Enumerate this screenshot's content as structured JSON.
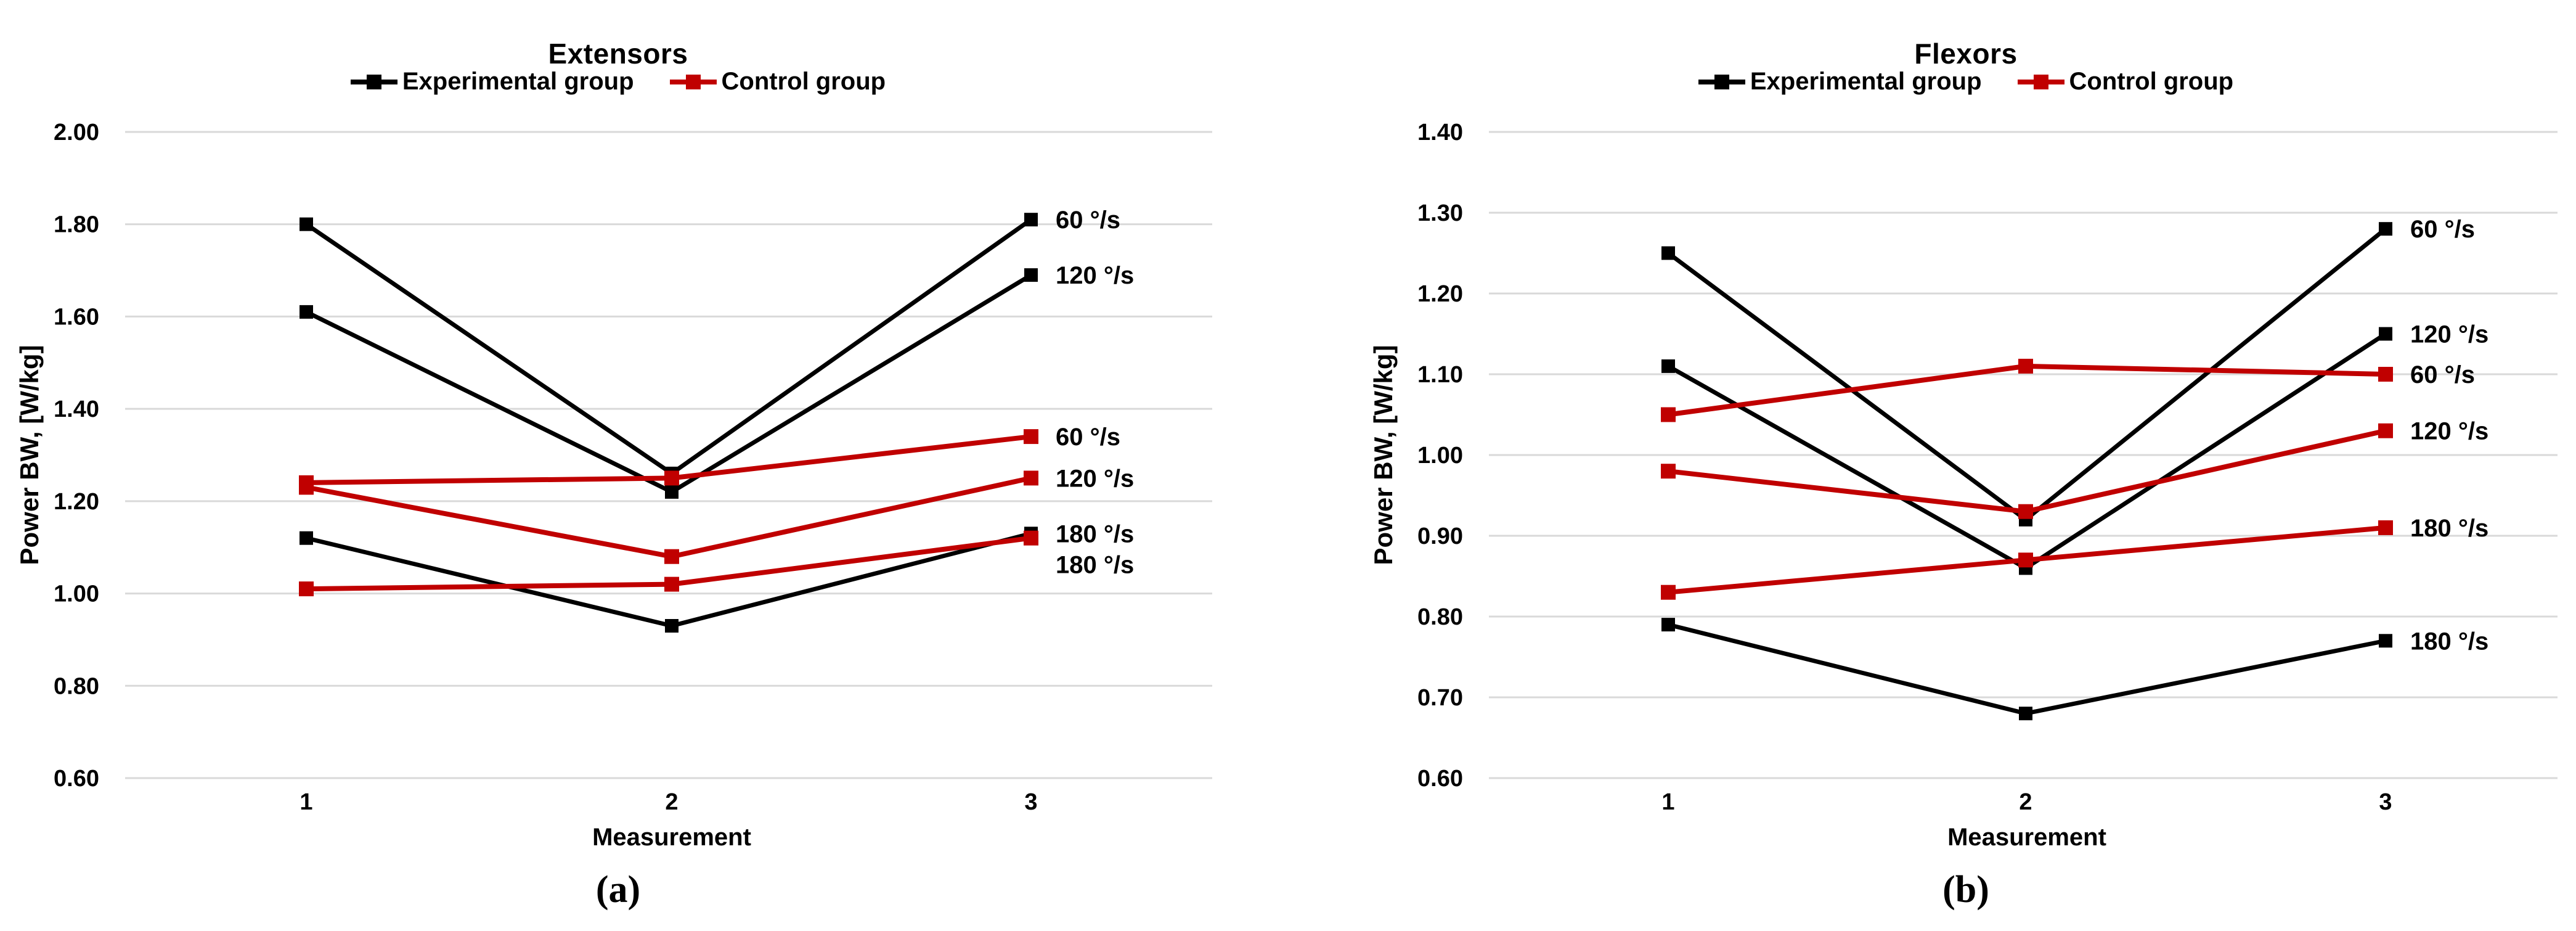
{
  "colors": {
    "experimental": "#000000",
    "control": "#C00000",
    "gridline": "#D9D9D9",
    "background": "#FFFFFF",
    "label_text": "#000000"
  },
  "legend": {
    "items": [
      {
        "label": "Experimental group",
        "color_key": "experimental"
      },
      {
        "label": "Control group",
        "color_key": "control"
      }
    ]
  },
  "captions": {
    "a": "(a)",
    "b": "(b)"
  },
  "chart_data": [
    {
      "id": "extensors",
      "type": "line",
      "title": "Extensors",
      "xlabel": "Measurement",
      "ylabel": "Power BW, [W/kg]",
      "categories": [
        "1",
        "2",
        "3"
      ],
      "ylim": [
        0.6,
        2.0
      ],
      "ytick_step": 0.2,
      "ytick_labels": [
        "2.00",
        "1.80",
        "1.60",
        "1.40",
        "1.20",
        "1.00",
        "0.80",
        "0.60"
      ],
      "grid": true,
      "legend_position": "top",
      "series": [
        {
          "name": "Experimental group",
          "speed_label": "60 °/s",
          "color_key": "experimental",
          "values": [
            1.8,
            1.26,
            1.81
          ]
        },
        {
          "name": "Experimental group",
          "speed_label": "120 °/s",
          "color_key": "experimental",
          "values": [
            1.61,
            1.22,
            1.69
          ]
        },
        {
          "name": "Experimental group",
          "speed_label": "180 °/s",
          "color_key": "experimental",
          "values": [
            1.12,
            0.93,
            1.13
          ]
        },
        {
          "name": "Control group",
          "speed_label": "60 °/s",
          "color_key": "control",
          "values": [
            1.24,
            1.25,
            1.34
          ]
        },
        {
          "name": "Control group",
          "speed_label": "120 °/s",
          "color_key": "control",
          "values": [
            1.23,
            1.08,
            1.25
          ]
        },
        {
          "name": "Control group",
          "speed_label": "180 °/s",
          "color_key": "control",
          "values": [
            1.01,
            1.02,
            1.12
          ]
        }
      ]
    },
    {
      "id": "flexors",
      "type": "line",
      "title": "Flexors",
      "xlabel": "Measurement",
      "ylabel": "Power BW, [W/kg]",
      "categories": [
        "1",
        "2",
        "3"
      ],
      "ylim": [
        0.6,
        1.4
      ],
      "ytick_step": 0.1,
      "ytick_labels": [
        "1.40",
        "1.30",
        "1.20",
        "1.10",
        "1.00",
        "0.90",
        "0.80",
        "0.70",
        "0.60"
      ],
      "grid": true,
      "legend_position": "top",
      "series": [
        {
          "name": "Experimental group",
          "speed_label": "60 °/s",
          "color_key": "experimental",
          "values": [
            1.25,
            0.92,
            1.28
          ]
        },
        {
          "name": "Experimental group",
          "speed_label": "120 °/s",
          "color_key": "experimental",
          "values": [
            1.11,
            0.86,
            1.15
          ]
        },
        {
          "name": "Experimental group",
          "speed_label": "180 °/s",
          "color_key": "experimental",
          "values": [
            0.79,
            0.68,
            0.77
          ]
        },
        {
          "name": "Control group",
          "speed_label": "60 °/s",
          "color_key": "control",
          "values": [
            1.05,
            1.11,
            1.1
          ]
        },
        {
          "name": "Control group",
          "speed_label": "120 °/s",
          "color_key": "control",
          "values": [
            0.98,
            0.93,
            1.03
          ]
        },
        {
          "name": "Control group",
          "speed_label": "180 °/s",
          "color_key": "control",
          "values": [
            0.83,
            0.87,
            0.91
          ]
        }
      ]
    }
  ]
}
